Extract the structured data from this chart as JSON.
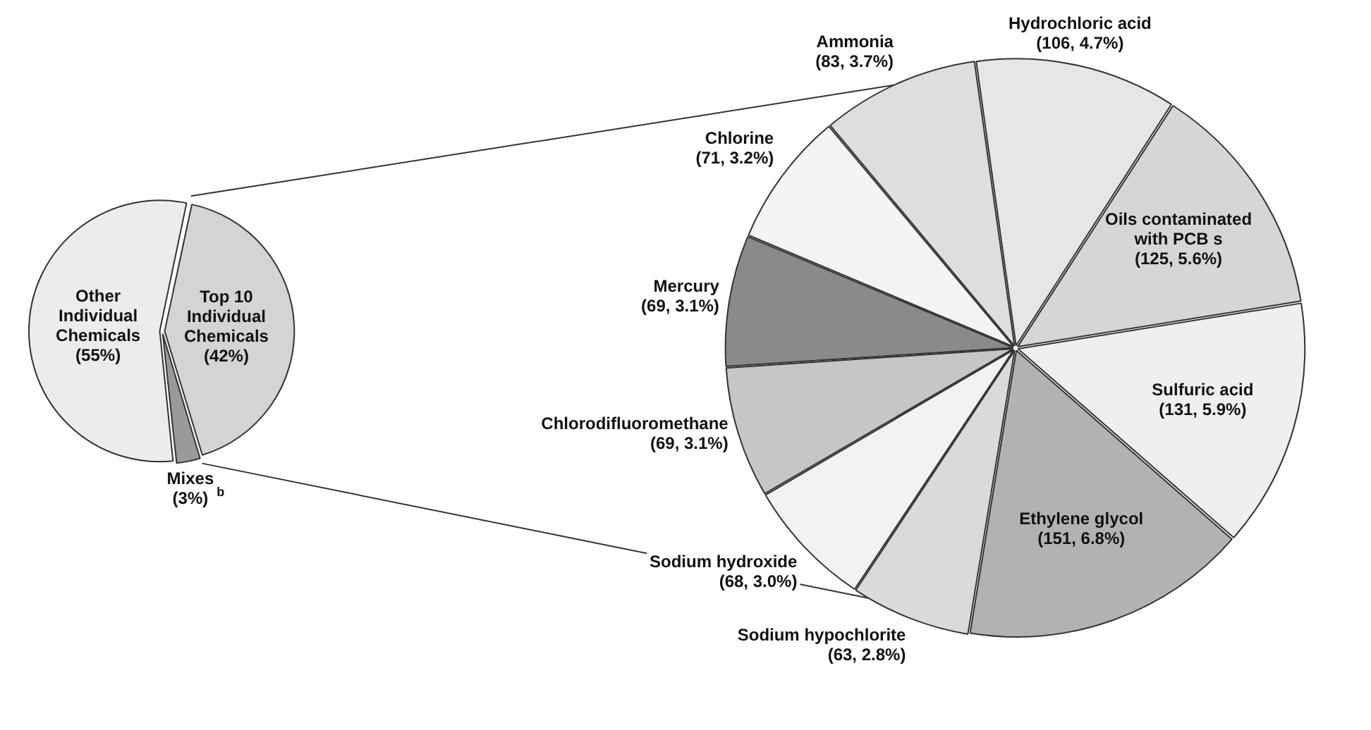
{
  "chart_data": [
    {
      "type": "pie",
      "categories": [
        "Top 10 Individual Chemicals",
        "Mixes",
        "Other Individual Chemicals"
      ],
      "values": [
        42,
        3,
        55
      ],
      "colors": [
        "#d4d4d4",
        "#9a9a9a",
        "#ececec"
      ],
      "value_labels": [
        "(42%)",
        "(3%)",
        "(55%)"
      ],
      "annotations": [
        "b"
      ]
    },
    {
      "type": "pie",
      "categories": [
        "Hydrochloric acid",
        "Oils contaminated with PCB s",
        "Sulfuric acid",
        "Ethylene glycol",
        "Sodium hypochlorite",
        "Sodium hydroxide",
        "Chlorodifluoromethane",
        "Mercury",
        "Chlorine",
        "Ammonia"
      ],
      "values": [
        106,
        125,
        131,
        151,
        63,
        68,
        69,
        69,
        71,
        83
      ],
      "colors": [
        "#e6e6e6",
        "#d6d6d6",
        "#efefef",
        "#b2b2b2",
        "#dadada",
        "#f2f2f2",
        "#c6c6c6",
        "#8a8a8a",
        "#f4f4f4",
        "#dedede"
      ],
      "value_labels": [
        "(106, 4.7%)",
        "(125, 5.6%)",
        "(131, 5.9%)",
        "(151, 6.8%)",
        "(63, 2.8%)",
        "(68, 3.0%)",
        "(69, 3.1%)",
        "(69, 3.1%)",
        "(71, 3.2%)",
        "(83, 3.7%)"
      ]
    }
  ]
}
